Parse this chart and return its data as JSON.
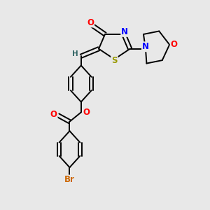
{
  "bg_color": "#e8e8e8",
  "bond_color": "#000000",
  "bond_lw": 1.4,
  "atom_colors": {
    "O": "#ff0000",
    "N": "#0000ff",
    "S": "#999900",
    "Br": "#cc6600",
    "C": "#000000",
    "H": "#336666"
  },
  "font_size": 7.5,
  "xlim": [
    0,
    10
  ],
  "ylim": [
    0,
    10
  ]
}
